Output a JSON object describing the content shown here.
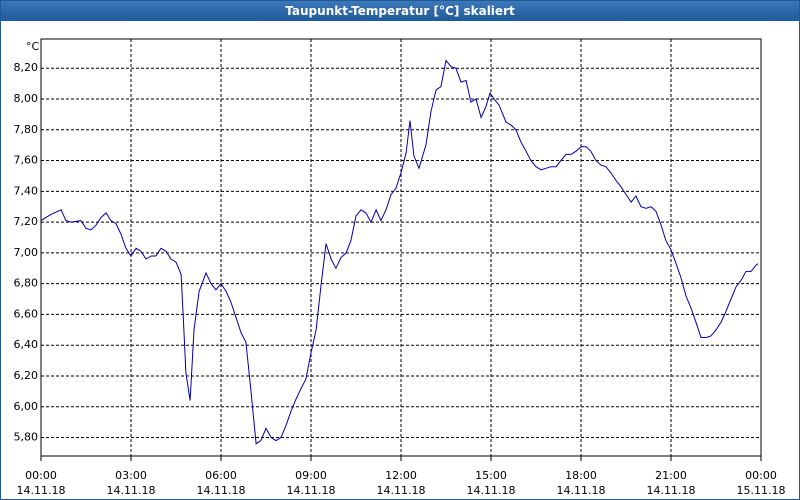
{
  "chart_data": {
    "type": "line",
    "title": "Taupunkt-Temperatur [°C] skaliert",
    "y_unit": "°C",
    "color": "#0000b0",
    "grid": true,
    "xlim": [
      0,
      24
    ],
    "ylim": [
      5.68,
      8.39
    ],
    "xticks": [
      {
        "value": 0,
        "label": "00:00",
        "date": "14.11.18"
      },
      {
        "value": 3,
        "label": "03:00",
        "date": "14.11.18"
      },
      {
        "value": 6,
        "label": "06:00",
        "date": "14.11.18"
      },
      {
        "value": 9,
        "label": "09:00",
        "date": "14.11.18"
      },
      {
        "value": 12,
        "label": "12:00",
        "date": "14.11.18"
      },
      {
        "value": 15,
        "label": "15:00",
        "date": "14.11.18"
      },
      {
        "value": 18,
        "label": "18:00",
        "date": "14.11.18"
      },
      {
        "value": 21,
        "label": "21:00",
        "date": "14.11.18"
      },
      {
        "value": 24,
        "label": "00:00",
        "date": "15.11.18"
      }
    ],
    "yticks": [
      {
        "value": 5.8,
        "label": "5,80"
      },
      {
        "value": 6.0,
        "label": "6,00"
      },
      {
        "value": 6.2,
        "label": "6,20"
      },
      {
        "value": 6.4,
        "label": "6,40"
      },
      {
        "value": 6.6,
        "label": "6,60"
      },
      {
        "value": 6.8,
        "label": "6,80"
      },
      {
        "value": 7.0,
        "label": "7,00"
      },
      {
        "value": 7.2,
        "label": "7,20"
      },
      {
        "value": 7.4,
        "label": "7,40"
      },
      {
        "value": 7.6,
        "label": "7,60"
      },
      {
        "value": 7.8,
        "label": "7,80"
      },
      {
        "value": 8.0,
        "label": "8,00"
      },
      {
        "value": 8.2,
        "label": "8,20"
      }
    ],
    "x": [
      0.0,
      0.33,
      0.67,
      0.83,
      1.0,
      1.33,
      1.5,
      1.67,
      1.83,
      2.0,
      2.17,
      2.33,
      2.5,
      2.67,
      2.83,
      3.0,
      3.17,
      3.33,
      3.5,
      3.67,
      3.83,
      4.0,
      4.17,
      4.33,
      4.5,
      4.67,
      4.75,
      4.83,
      4.97,
      5.1,
      5.27,
      5.5,
      5.67,
      5.83,
      6.0,
      6.17,
      6.33,
      6.5,
      6.67,
      6.83,
      7.0,
      7.17,
      7.33,
      7.5,
      7.67,
      7.83,
      8.0,
      8.17,
      8.33,
      8.5,
      8.67,
      8.83,
      9.0,
      9.17,
      9.33,
      9.5,
      9.67,
      9.83,
      10.0,
      10.17,
      10.33,
      10.5,
      10.67,
      10.83,
      11.0,
      11.17,
      11.33,
      11.5,
      11.67,
      11.83,
      12.0,
      12.17,
      12.3,
      12.43,
      12.6,
      12.83,
      13.0,
      13.17,
      13.33,
      13.5,
      13.67,
      13.83,
      14.0,
      14.17,
      14.33,
      14.5,
      14.67,
      14.83,
      14.97,
      15.1,
      15.27,
      15.5,
      15.67,
      15.83,
      16.0,
      16.17,
      16.33,
      16.5,
      16.67,
      16.83,
      17.0,
      17.17,
      17.33,
      17.5,
      17.67,
      17.83,
      18.0,
      18.17,
      18.33,
      18.5,
      18.67,
      18.83,
      19.0,
      19.17,
      19.33,
      19.5,
      19.67,
      19.83,
      20.0,
      20.17,
      20.33,
      20.5,
      20.67,
      20.83,
      21.0,
      21.17,
      21.33,
      21.5,
      21.67,
      21.83,
      22.0,
      22.17,
      22.33,
      22.5,
      22.67,
      22.83,
      23.0,
      23.17,
      23.33,
      23.5,
      23.67,
      23.83,
      23.9
    ],
    "values": [
      7.21,
      7.25,
      7.28,
      7.21,
      7.2,
      7.21,
      7.16,
      7.15,
      7.18,
      7.23,
      7.26,
      7.21,
      7.19,
      7.12,
      7.03,
      6.98,
      7.03,
      7.01,
      6.96,
      6.98,
      6.98,
      7.03,
      7.01,
      6.96,
      6.94,
      6.86,
      6.55,
      6.22,
      6.04,
      6.5,
      6.75,
      6.87,
      6.8,
      6.76,
      6.8,
      6.75,
      6.68,
      6.58,
      6.48,
      6.42,
      6.1,
      5.76,
      5.78,
      5.86,
      5.8,
      5.78,
      5.8,
      5.88,
      5.97,
      6.05,
      6.12,
      6.18,
      6.35,
      6.5,
      6.78,
      7.06,
      6.96,
      6.9,
      6.97,
      7.0,
      7.08,
      7.24,
      7.28,
      7.26,
      7.2,
      7.28,
      7.21,
      7.28,
      7.38,
      7.42,
      7.52,
      7.65,
      7.86,
      7.63,
      7.55,
      7.7,
      7.92,
      8.06,
      8.08,
      8.25,
      8.21,
      8.2,
      8.11,
      8.12,
      7.98,
      8.0,
      7.88,
      7.95,
      8.04,
      8.0,
      7.96,
      7.85,
      7.83,
      7.8,
      7.72,
      7.66,
      7.6,
      7.56,
      7.54,
      7.55,
      7.56,
      7.56,
      7.6,
      7.64,
      7.64,
      7.66,
      7.69,
      7.69,
      7.66,
      7.6,
      7.57,
      7.56,
      7.52,
      7.47,
      7.43,
      7.38,
      7.33,
      7.37,
      7.3,
      7.29,
      7.3,
      7.27,
      7.18,
      7.08,
      7.02,
      6.93,
      6.84,
      6.72,
      6.64,
      6.55,
      6.45,
      6.45,
      6.46,
      6.5,
      6.55,
      6.62,
      6.7,
      6.78,
      6.82,
      6.88,
      6.88,
      6.92,
      6.93
    ]
  }
}
